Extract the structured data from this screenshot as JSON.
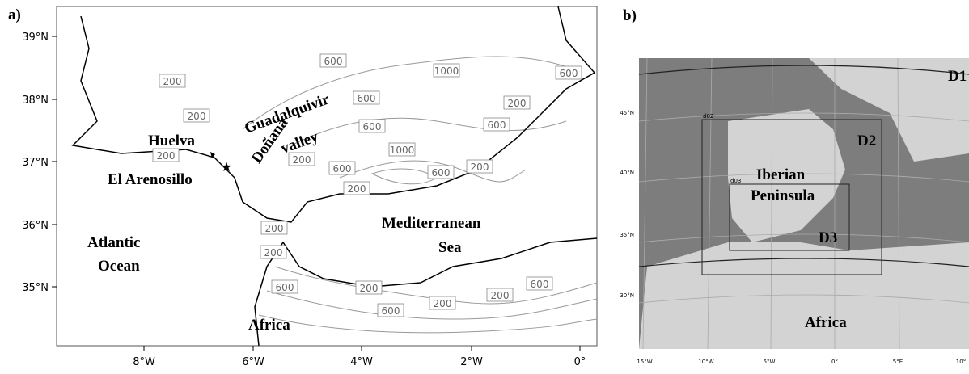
{
  "panel_a": {
    "tag": "a)",
    "lat_labels": [
      "39°N",
      "38°N",
      "37°N",
      "36°N",
      "35°N"
    ],
    "lon_labels": [
      "8°W",
      "6°W",
      "4°W",
      "2°W",
      "0°"
    ],
    "contour_labels": [
      "600",
      "200",
      "1000",
      "600",
      "600",
      "200",
      "200",
      "600",
      "600",
      "1000",
      "200",
      "200",
      "600",
      "600",
      "200",
      "200",
      "200",
      "200",
      "600",
      "200",
      "600",
      "200",
      "200",
      "600"
    ],
    "places": {
      "huelva": "Huelva",
      "donana": "Doñana",
      "guadalquivir": [
        "Guadalquivir",
        "valley"
      ],
      "arenosillo": "El Arenosillo",
      "atlantic": [
        "Atlantic",
        "Ocean"
      ],
      "mediterranean": [
        "Mediterranean",
        "Sea"
      ],
      "africa": "Africa"
    }
  },
  "panel_b": {
    "tag": "b)",
    "lat_labels": [
      "45°N",
      "40°N",
      "35°N",
      "30°N"
    ],
    "lon_labels": [
      "15°W",
      "10°W",
      "5°W",
      "0°",
      "5°E",
      "10°"
    ],
    "domains": {
      "d1": "D1",
      "d2": "D2",
      "d3": "D3",
      "d02": "d02",
      "d03": "d03"
    },
    "places": {
      "iberia": [
        "Iberian",
        "Peninsula"
      ],
      "africa": "Africa"
    }
  }
}
